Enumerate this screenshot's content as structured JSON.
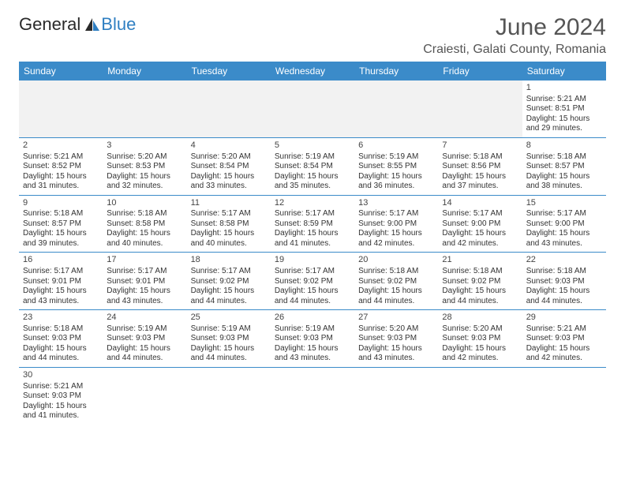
{
  "brand": {
    "part1": "General",
    "part2": "Blue"
  },
  "title": "June 2024",
  "location": "Craiesti, Galati County, Romania",
  "colors": {
    "header_bg": "#3b8bc9",
    "header_text": "#ffffff",
    "cell_border": "#3b8bc9",
    "blank_row_bg": "#f2f2f2",
    "text": "#333333",
    "title_color": "#555555"
  },
  "days_of_week": [
    "Sunday",
    "Monday",
    "Tuesday",
    "Wednesday",
    "Thursday",
    "Friday",
    "Saturday"
  ],
  "weeks": [
    [
      null,
      null,
      null,
      null,
      null,
      null,
      {
        "n": "1",
        "sunrise": "5:21 AM",
        "sunset": "8:51 PM",
        "dh": "15",
        "dm": "29"
      }
    ],
    [
      {
        "n": "2",
        "sunrise": "5:21 AM",
        "sunset": "8:52 PM",
        "dh": "15",
        "dm": "31"
      },
      {
        "n": "3",
        "sunrise": "5:20 AM",
        "sunset": "8:53 PM",
        "dh": "15",
        "dm": "32"
      },
      {
        "n": "4",
        "sunrise": "5:20 AM",
        "sunset": "8:54 PM",
        "dh": "15",
        "dm": "33"
      },
      {
        "n": "5",
        "sunrise": "5:19 AM",
        "sunset": "8:54 PM",
        "dh": "15",
        "dm": "35"
      },
      {
        "n": "6",
        "sunrise": "5:19 AM",
        "sunset": "8:55 PM",
        "dh": "15",
        "dm": "36"
      },
      {
        "n": "7",
        "sunrise": "5:18 AM",
        "sunset": "8:56 PM",
        "dh": "15",
        "dm": "37"
      },
      {
        "n": "8",
        "sunrise": "5:18 AM",
        "sunset": "8:57 PM",
        "dh": "15",
        "dm": "38"
      }
    ],
    [
      {
        "n": "9",
        "sunrise": "5:18 AM",
        "sunset": "8:57 PM",
        "dh": "15",
        "dm": "39"
      },
      {
        "n": "10",
        "sunrise": "5:18 AM",
        "sunset": "8:58 PM",
        "dh": "15",
        "dm": "40"
      },
      {
        "n": "11",
        "sunrise": "5:17 AM",
        "sunset": "8:58 PM",
        "dh": "15",
        "dm": "40"
      },
      {
        "n": "12",
        "sunrise": "5:17 AM",
        "sunset": "8:59 PM",
        "dh": "15",
        "dm": "41"
      },
      {
        "n": "13",
        "sunrise": "5:17 AM",
        "sunset": "9:00 PM",
        "dh": "15",
        "dm": "42"
      },
      {
        "n": "14",
        "sunrise": "5:17 AM",
        "sunset": "9:00 PM",
        "dh": "15",
        "dm": "42"
      },
      {
        "n": "15",
        "sunrise": "5:17 AM",
        "sunset": "9:00 PM",
        "dh": "15",
        "dm": "43"
      }
    ],
    [
      {
        "n": "16",
        "sunrise": "5:17 AM",
        "sunset": "9:01 PM",
        "dh": "15",
        "dm": "43"
      },
      {
        "n": "17",
        "sunrise": "5:17 AM",
        "sunset": "9:01 PM",
        "dh": "15",
        "dm": "43"
      },
      {
        "n": "18",
        "sunrise": "5:17 AM",
        "sunset": "9:02 PM",
        "dh": "15",
        "dm": "44"
      },
      {
        "n": "19",
        "sunrise": "5:17 AM",
        "sunset": "9:02 PM",
        "dh": "15",
        "dm": "44"
      },
      {
        "n": "20",
        "sunrise": "5:18 AM",
        "sunset": "9:02 PM",
        "dh": "15",
        "dm": "44"
      },
      {
        "n": "21",
        "sunrise": "5:18 AM",
        "sunset": "9:02 PM",
        "dh": "15",
        "dm": "44"
      },
      {
        "n": "22",
        "sunrise": "5:18 AM",
        "sunset": "9:03 PM",
        "dh": "15",
        "dm": "44"
      }
    ],
    [
      {
        "n": "23",
        "sunrise": "5:18 AM",
        "sunset": "9:03 PM",
        "dh": "15",
        "dm": "44"
      },
      {
        "n": "24",
        "sunrise": "5:19 AM",
        "sunset": "9:03 PM",
        "dh": "15",
        "dm": "44"
      },
      {
        "n": "25",
        "sunrise": "5:19 AM",
        "sunset": "9:03 PM",
        "dh": "15",
        "dm": "44"
      },
      {
        "n": "26",
        "sunrise": "5:19 AM",
        "sunset": "9:03 PM",
        "dh": "15",
        "dm": "43"
      },
      {
        "n": "27",
        "sunrise": "5:20 AM",
        "sunset": "9:03 PM",
        "dh": "15",
        "dm": "43"
      },
      {
        "n": "28",
        "sunrise": "5:20 AM",
        "sunset": "9:03 PM",
        "dh": "15",
        "dm": "42"
      },
      {
        "n": "29",
        "sunrise": "5:21 AM",
        "sunset": "9:03 PM",
        "dh": "15",
        "dm": "42"
      }
    ],
    [
      {
        "n": "30",
        "sunrise": "5:21 AM",
        "sunset": "9:03 PM",
        "dh": "15",
        "dm": "41"
      },
      null,
      null,
      null,
      null,
      null,
      null
    ]
  ],
  "labels": {
    "sunrise_prefix": "Sunrise: ",
    "sunset_prefix": "Sunset: ",
    "daylight_prefix": "Daylight: ",
    "hours_word": " hours",
    "and_word": "and ",
    "minutes_word": " minutes."
  }
}
